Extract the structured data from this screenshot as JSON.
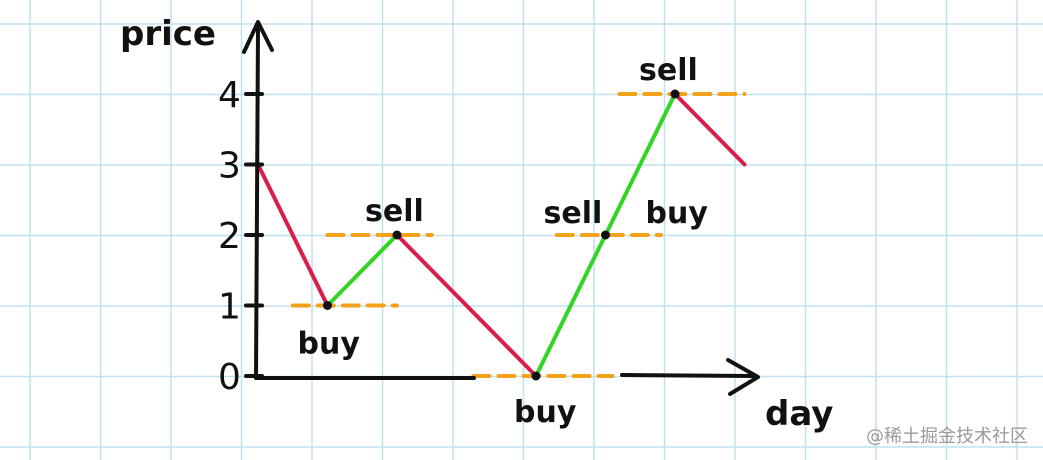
{
  "chart_data": {
    "type": "line",
    "xlabel": "day",
    "ylabel": "price",
    "yticks": [
      "0",
      "1",
      "2",
      "3",
      "4"
    ],
    "ylim": [
      0,
      4
    ],
    "x": [
      0,
      1,
      2,
      4,
      5,
      6,
      7
    ],
    "y": [
      3,
      1,
      2,
      0,
      2,
      4,
      3
    ],
    "segment_trend": [
      "down",
      "up",
      "down",
      "up",
      "up",
      "down"
    ],
    "annotations": [
      {
        "text": "buy",
        "x": 1,
        "y": 1
      },
      {
        "text": "sell",
        "x": 2,
        "y": 2
      },
      {
        "text": "buy",
        "x": 4,
        "y": 0
      },
      {
        "text": "sell",
        "x": 5,
        "y": 2
      },
      {
        "text": "buy",
        "x": 5,
        "y": 2
      },
      {
        "text": "sell",
        "x": 6,
        "y": 4
      }
    ],
    "colors": {
      "up": "#33d423",
      "down": "#d81e4a",
      "guide": "#f4a21a",
      "grid": "#bfe1ef",
      "axis": "#111111"
    },
    "grid": true
  },
  "watermark": "@稀土掘金技术社区"
}
